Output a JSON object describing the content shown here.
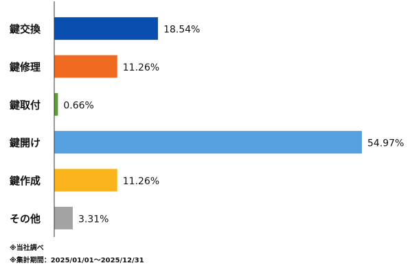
{
  "chart_data": {
    "type": "bar",
    "orientation": "horizontal",
    "categories": [
      "鍵交換",
      "鍵修理",
      "鍵取付",
      "鍵開け",
      "鍵作成",
      "その他"
    ],
    "values": [
      18.54,
      11.26,
      0.66,
      54.97,
      11.26,
      3.31
    ],
    "value_labels": [
      "18.54%",
      "11.26%",
      "0.66%",
      "54.97%",
      "11.26%",
      "3.31%"
    ],
    "colors": [
      "#0a4fb0",
      "#ef6b22",
      "#5a9e32",
      "#55a0de",
      "#fbb51c",
      "#a3a3a3"
    ],
    "xlim": [
      0,
      54.97
    ],
    "grid": false,
    "legend": "none"
  },
  "footnotes": {
    "source": "※当社調べ",
    "period": "※集計期間：2025/01/01〜2025/12/31"
  }
}
